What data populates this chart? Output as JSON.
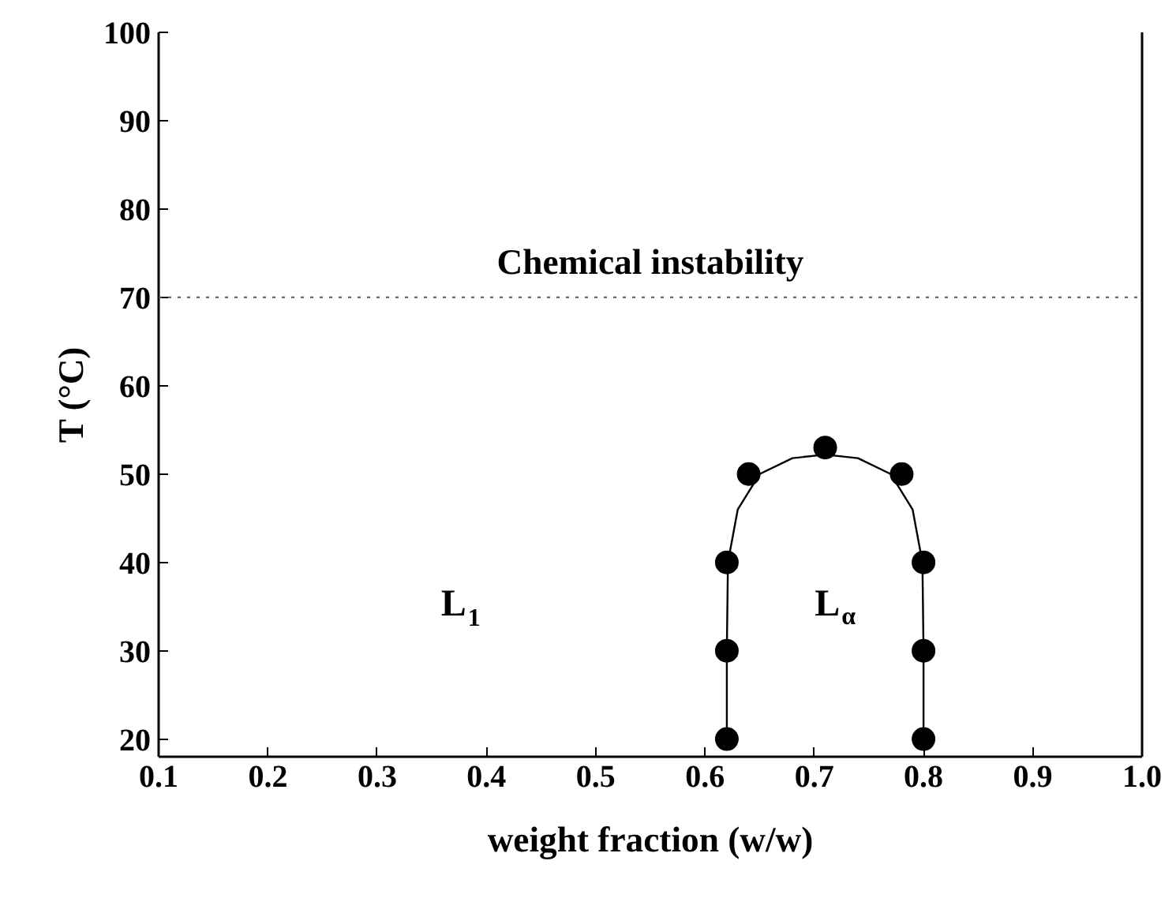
{
  "chart_data": {
    "type": "scatter",
    "xlabel": "weight fraction (w/w)",
    "ylabel": "T (°C)",
    "xlim": [
      0.1,
      1.0
    ],
    "ylim": [
      18,
      100
    ],
    "xticks": [
      0.1,
      0.2,
      0.3,
      0.4,
      0.5,
      0.6,
      0.7,
      0.8,
      0.9,
      {
        "value": 1.0,
        "label": "1.0"
      }
    ],
    "yticks": [
      20,
      30,
      40,
      50,
      60,
      70,
      80,
      90,
      100
    ],
    "grid": false,
    "marker": "circle",
    "series": [
      {
        "color": "#000000",
        "x": [
          0.62,
          0.62,
          0.62,
          0.64,
          0.71,
          0.78,
          0.8,
          0.8,
          0.8
        ],
        "values": [
          20,
          30,
          40,
          50,
          53,
          50,
          40,
          30,
          20
        ]
      },
      {
        "type": "line",
        "color": "#000000",
        "marker": "none",
        "line_style": "solid",
        "x": [
          0.62,
          0.62,
          0.621,
          0.63,
          0.65,
          0.68,
          0.71,
          0.74,
          0.77,
          0.79,
          0.799,
          0.8,
          0.8
        ],
        "values": [
          20,
          30,
          40,
          46,
          50,
          51.8,
          52.2,
          51.8,
          50,
          46,
          40,
          30,
          20
        ]
      }
    ],
    "ref_lines": [
      {
        "axis": "y",
        "value": 70,
        "label": "Chemical instability",
        "line_style": "dotted",
        "color": "#555555"
      }
    ],
    "annotations": [
      "L$_{1}$",
      "L$_{α}$"
    ]
  }
}
